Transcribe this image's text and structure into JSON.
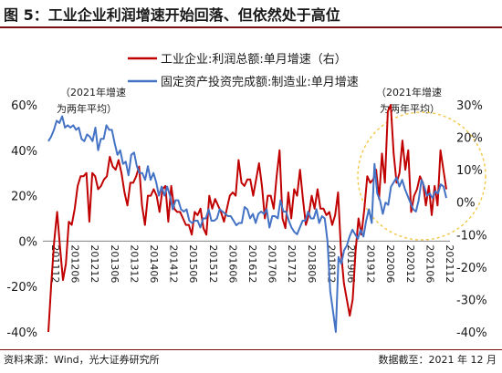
{
  "header": {
    "title": "图 5：工业企业利润增速开始回落、但依然处于高位"
  },
  "footer": {
    "source": "资料来源：Wind，光大证券研究所",
    "date": "数据截至：2021 年 12 月"
  },
  "annotations": {
    "left_note_line1": "（2021年增速",
    "left_note_line2": "为两年平均）",
    "right_note_line1": "（2021年增速",
    "right_note_line2": "为两年平均）"
  },
  "colors": {
    "profit": "#c00000",
    "investment": "#4472c4",
    "highlight": "#f2c744",
    "title_rule": "#7a0f0f"
  },
  "chart_data": {
    "type": "line",
    "title": "",
    "xlabel": "",
    "ylabel": "",
    "x_ticks": [
      "201112",
      "201206",
      "201212",
      "201306",
      "201312",
      "201406",
      "201412",
      "201506",
      "201512",
      "201606",
      "201612",
      "201706",
      "201712",
      "201806",
      "201812",
      "201906",
      "201912",
      "202006",
      "202012",
      "202106",
      "202112"
    ],
    "y_left_ticks": [
      "60%",
      "40%",
      "20%",
      "0%",
      "-20%",
      "-40%"
    ],
    "y_right_ticks": [
      "30%",
      "20%",
      "10%",
      "0%",
      "-10%",
      "-20%",
      "-30%",
      "-40%"
    ],
    "ylim_left": [
      -40,
      60
    ],
    "ylim_right": [
      -40,
      30
    ],
    "grid": false,
    "legend_position": "top",
    "series": [
      {
        "name": "工业企业:利润总额:单月增速（右）",
        "axis": "right",
        "color": "#c00000",
        "values": [
          -40,
          -25,
          -12,
          -3,
          -14,
          -24,
          -19,
          -6,
          -7,
          -2,
          5,
          8,
          8,
          9,
          -6,
          9,
          8,
          4,
          5,
          7,
          8,
          14,
          11,
          10,
          13,
          9,
          3,
          -1,
          6,
          6,
          8,
          11,
          -1,
          -7,
          2,
          2,
          4,
          2,
          -3,
          4,
          5,
          -6,
          5,
          -2,
          -3,
          -3,
          -5,
          -7,
          -7,
          -10,
          -3,
          -4,
          -2,
          -8,
          -10,
          2,
          -2,
          1,
          -1,
          -3,
          -6,
          -2,
          2,
          3,
          2,
          13,
          6,
          5,
          7,
          7,
          2,
          7,
          12,
          5,
          -5,
          2,
          2,
          -2,
          8,
          16,
          -5,
          -8,
          3,
          -5,
          4,
          2,
          10,
          1,
          -7,
          -4,
          2,
          -2,
          4,
          -2,
          -2,
          -4,
          -3,
          -7,
          -4,
          3,
          -15,
          -25,
          -30,
          -35,
          -30,
          -15,
          -5,
          -10,
          -2,
          8,
          6,
          7,
          10,
          1,
          15,
          6,
          28,
          30,
          15,
          6,
          9,
          19,
          10,
          16,
          -3,
          2,
          4,
          8,
          6,
          -1,
          5,
          -4,
          5,
          -1,
          16,
          10,
          4
        ]
      },
      {
        "name": "固定资产投资完成额:制造业:单月增速",
        "axis": "left",
        "color": "#4472c4",
        "values": [
          44,
          46,
          49,
          53,
          52,
          55,
          50,
          51,
          50,
          51,
          49,
          50,
          45,
          44,
          47,
          46,
          44,
          50,
          40,
          45,
          45,
          51,
          49,
          49,
          43,
          38,
          40,
          34,
          35,
          29,
          38,
          39,
          33,
          30,
          30,
          27,
          33,
          27,
          30,
          26,
          20,
          24,
          20,
          24,
          20,
          14,
          18,
          18,
          14,
          13,
          14,
          9,
          8,
          9,
          9,
          6,
          10,
          10,
          14,
          9,
          9,
          10,
          14,
          13,
          12,
          11,
          11,
          9,
          7,
          8,
          8,
          15,
          14,
          10,
          12,
          8,
          12,
          13,
          12,
          14,
          6,
          11,
          11,
          10,
          18,
          13,
          13,
          9,
          6,
          4,
          3,
          6,
          9,
          9,
          13,
          10,
          10,
          14,
          8,
          11,
          10,
          0,
          -22,
          -31,
          -40,
          -7,
          -10,
          -4,
          -2,
          2,
          5,
          3,
          1,
          5,
          2,
          9,
          14,
          8,
          34,
          21,
          18,
          12,
          17,
          16,
          24,
          26,
          28,
          24,
          27,
          23,
          20,
          17,
          14,
          13,
          18,
          27,
          24,
          20,
          21,
          19,
          22,
          21,
          25,
          24,
          19
        ]
      }
    ]
  }
}
